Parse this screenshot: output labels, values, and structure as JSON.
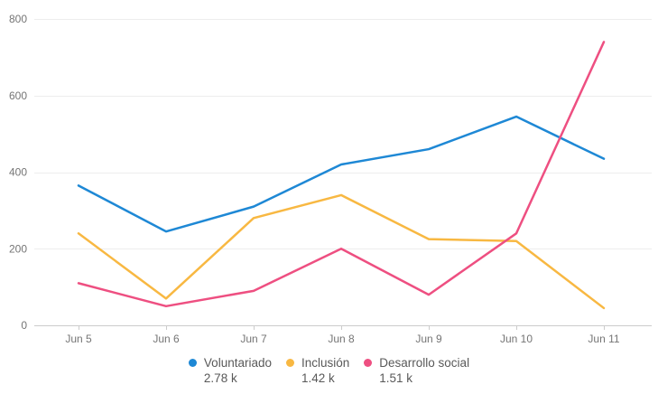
{
  "chart_data": {
    "type": "line",
    "title": "",
    "xlabel": "",
    "ylabel": "",
    "categories": [
      "Jun 5",
      "Jun 6",
      "Jun 7",
      "Jun 8",
      "Jun 9",
      "Jun 10",
      "Jun 11"
    ],
    "series": [
      {
        "name": "Voluntariado",
        "total_label": "2.78 k",
        "color": "#1e88d5",
        "values": [
          365,
          245,
          310,
          420,
          460,
          545,
          435
        ]
      },
      {
        "name": "Inclusión",
        "total_label": "1.42 k",
        "color": "#f8b842",
        "values": [
          240,
          70,
          280,
          340,
          225,
          220,
          45
        ]
      },
      {
        "name": "Desarrollo social",
        "total_label": "1.51 k",
        "color": "#ee4f81",
        "values": [
          110,
          50,
          90,
          200,
          80,
          240,
          740
        ]
      }
    ],
    "ylim": [
      0,
      800
    ],
    "yticks": [
      0,
      200,
      400,
      600,
      800
    ],
    "grid": true,
    "legend_position": "bottom"
  },
  "colors": {
    "background": "#ffffff",
    "grid_line": "#ededed",
    "axis_line": "#cccccc",
    "tick_mark": "#cccccc",
    "axis_label": "#757575",
    "legend_text": "#595959"
  }
}
